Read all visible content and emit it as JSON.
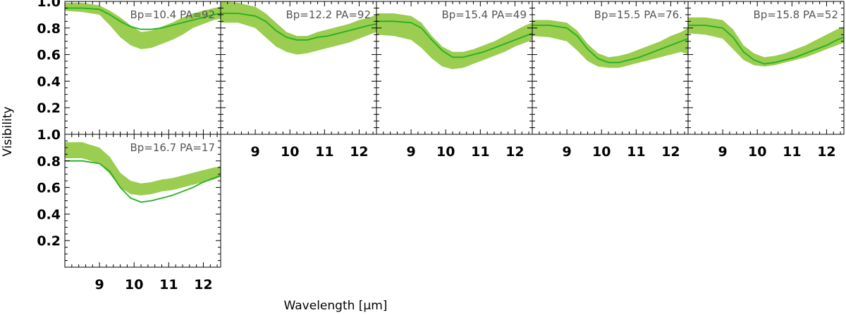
{
  "chart_data": {
    "type": "line",
    "xlabel": "Wavelength [μm]",
    "ylabel": "Visibility",
    "xlim": [
      8.0,
      12.5
    ],
    "ylim": [
      0.0,
      1.0
    ],
    "x_ticks": [
      9,
      10,
      11,
      12
    ],
    "x_tick_labels": [
      "9",
      "10",
      "11",
      "12"
    ],
    "y_ticks": [
      0.2,
      0.4,
      0.6,
      0.8,
      1.0
    ],
    "y_tick_labels": [
      "0.2",
      "0.4",
      "0.6",
      "0.8",
      "1.0"
    ],
    "colors": {
      "band": "#9ACD50",
      "line": "#22B022",
      "axis": "#000000",
      "label": "#555555"
    },
    "panels": [
      {
        "label": "Bp=10.4  PA=92",
        "x": [
          8.0,
          8.5,
          9.0,
          9.3,
          9.6,
          9.9,
          10.2,
          10.5,
          10.8,
          11.1,
          11.4,
          11.7,
          12.0,
          12.3,
          12.5
        ],
        "model": [
          0.95,
          0.95,
          0.94,
          0.9,
          0.85,
          0.81,
          0.79,
          0.79,
          0.8,
          0.82,
          0.84,
          0.86,
          0.88,
          0.9,
          0.91
        ],
        "band_lower": [
          0.93,
          0.92,
          0.9,
          0.82,
          0.73,
          0.67,
          0.64,
          0.65,
          0.68,
          0.71,
          0.75,
          0.8,
          0.83,
          0.86,
          0.87
        ],
        "band_upper": [
          0.99,
          0.99,
          0.97,
          0.93,
          0.88,
          0.82,
          0.77,
          0.78,
          0.81,
          0.84,
          0.88,
          0.91,
          0.93,
          0.95,
          0.96
        ]
      },
      {
        "label": "Bp=12.2  PA=92",
        "x": [
          8.0,
          8.5,
          9.0,
          9.3,
          9.6,
          9.9,
          10.2,
          10.5,
          10.8,
          11.1,
          11.4,
          11.7,
          12.0,
          12.3,
          12.5
        ],
        "model": [
          0.91,
          0.91,
          0.89,
          0.85,
          0.78,
          0.73,
          0.71,
          0.71,
          0.73,
          0.74,
          0.76,
          0.78,
          0.8,
          0.82,
          0.83
        ],
        "band_lower": [
          0.84,
          0.84,
          0.8,
          0.73,
          0.66,
          0.62,
          0.6,
          0.61,
          0.63,
          0.65,
          0.67,
          0.69,
          0.72,
          0.75,
          0.77
        ],
        "band_upper": [
          1.0,
          0.99,
          0.96,
          0.91,
          0.84,
          0.77,
          0.74,
          0.74,
          0.77,
          0.79,
          0.81,
          0.83,
          0.86,
          0.88,
          0.9
        ]
      },
      {
        "label": "Bp=15.4  PA=49",
        "x": [
          8.0,
          8.5,
          9.0,
          9.3,
          9.6,
          9.9,
          10.2,
          10.5,
          10.8,
          11.1,
          11.4,
          11.7,
          12.0,
          12.3,
          12.5
        ],
        "model": [
          0.85,
          0.85,
          0.84,
          0.8,
          0.71,
          0.63,
          0.58,
          0.58,
          0.6,
          0.62,
          0.65,
          0.68,
          0.71,
          0.74,
          0.76
        ],
        "band_lower": [
          0.75,
          0.74,
          0.71,
          0.65,
          0.57,
          0.51,
          0.49,
          0.5,
          0.53,
          0.56,
          0.59,
          0.62,
          0.66,
          0.69,
          0.71
        ],
        "band_upper": [
          0.91,
          0.91,
          0.89,
          0.84,
          0.74,
          0.66,
          0.62,
          0.62,
          0.64,
          0.67,
          0.7,
          0.74,
          0.78,
          0.82,
          0.84
        ]
      },
      {
        "label": "Bp=15.5  PA=76.",
        "x": [
          8.0,
          8.5,
          9.0,
          9.3,
          9.6,
          9.9,
          10.2,
          10.5,
          10.8,
          11.1,
          11.4,
          11.7,
          12.0,
          12.3,
          12.5
        ],
        "model": [
          0.82,
          0.82,
          0.8,
          0.74,
          0.64,
          0.57,
          0.54,
          0.54,
          0.56,
          0.58,
          0.61,
          0.64,
          0.67,
          0.7,
          0.72
        ],
        "band_lower": [
          0.74,
          0.73,
          0.7,
          0.63,
          0.55,
          0.51,
          0.5,
          0.5,
          0.52,
          0.54,
          0.56,
          0.58,
          0.6,
          0.62,
          0.6
        ],
        "band_upper": [
          0.86,
          0.86,
          0.84,
          0.78,
          0.68,
          0.61,
          0.58,
          0.59,
          0.61,
          0.64,
          0.67,
          0.7,
          0.74,
          0.77,
          0.8
        ]
      },
      {
        "label": "Bp=15.8  PA=52",
        "x": [
          8.0,
          8.5,
          9.0,
          9.3,
          9.6,
          9.9,
          10.2,
          10.5,
          10.8,
          11.1,
          11.4,
          11.7,
          12.0,
          12.3,
          12.5
        ],
        "model": [
          0.82,
          0.82,
          0.8,
          0.73,
          0.62,
          0.56,
          0.53,
          0.54,
          0.56,
          0.58,
          0.61,
          0.64,
          0.67,
          0.71,
          0.73
        ],
        "band_lower": [
          0.76,
          0.75,
          0.72,
          0.64,
          0.56,
          0.52,
          0.51,
          0.52,
          0.54,
          0.56,
          0.58,
          0.61,
          0.64,
          0.67,
          0.69
        ],
        "band_upper": [
          0.88,
          0.88,
          0.86,
          0.79,
          0.67,
          0.61,
          0.58,
          0.59,
          0.61,
          0.64,
          0.67,
          0.71,
          0.75,
          0.79,
          0.81
        ]
      },
      {
        "label": "Bp=16.7  PA=17",
        "x": [
          8.0,
          8.5,
          9.0,
          9.3,
          9.6,
          9.9,
          10.2,
          10.5,
          10.8,
          11.1,
          11.4,
          11.7,
          12.0,
          12.3,
          12.5
        ],
        "model": [
          0.8,
          0.8,
          0.78,
          0.72,
          0.6,
          0.52,
          0.49,
          0.5,
          0.52,
          0.54,
          0.57,
          0.6,
          0.64,
          0.67,
          0.69
        ],
        "band_lower": [
          0.82,
          0.82,
          0.78,
          0.7,
          0.6,
          0.55,
          0.54,
          0.55,
          0.57,
          0.58,
          0.6,
          0.62,
          0.64,
          0.66,
          0.68
        ],
        "band_upper": [
          0.94,
          0.94,
          0.9,
          0.83,
          0.71,
          0.65,
          0.63,
          0.64,
          0.66,
          0.67,
          0.69,
          0.71,
          0.73,
          0.75,
          0.76
        ]
      }
    ]
  }
}
